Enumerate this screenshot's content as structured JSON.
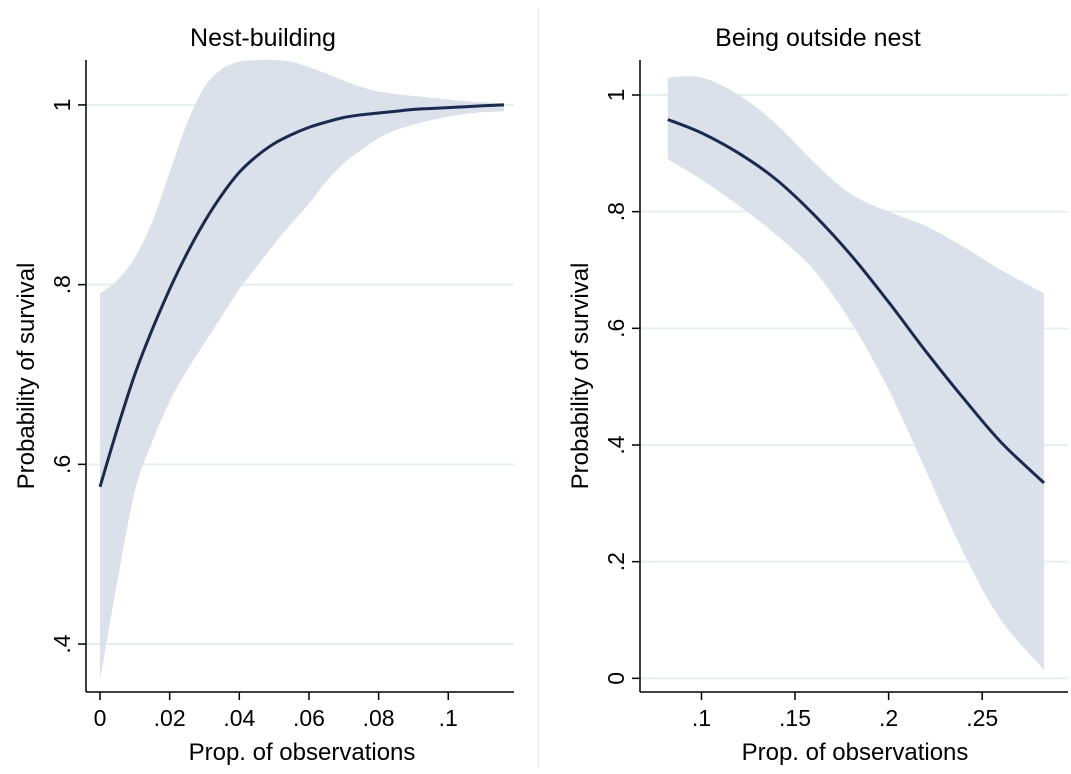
{
  "chart_data": [
    {
      "type": "line",
      "title": "Nest-building",
      "xlabel": "Prop. of observations",
      "ylabel": "Probability of survival",
      "xlim": [
        0,
        0.116
      ],
      "ylim": [
        0.36,
        1.05
      ],
      "x_ticks": [
        {
          "value": 0,
          "label": "0"
        },
        {
          "value": 0.02,
          "label": ".02"
        },
        {
          "value": 0.04,
          "label": ".04"
        },
        {
          "value": 0.06,
          "label": ".06"
        },
        {
          "value": 0.08,
          "label": ".08"
        },
        {
          "value": 0.1,
          "label": ".1"
        }
      ],
      "y_ticks": [
        {
          "value": 0.4,
          "label": ".4"
        },
        {
          "value": 0.6,
          "label": ".6"
        },
        {
          "value": 0.8,
          "label": ".8"
        },
        {
          "value": 1,
          "label": "1"
        }
      ],
      "grid": true,
      "series": [
        {
          "x": [
            0,
            0.005,
            0.01,
            0.015,
            0.02,
            0.025,
            0.03,
            0.035,
            0.04,
            0.045,
            0.05,
            0.055,
            0.06,
            0.065,
            0.07,
            0.075,
            0.08,
            0.085,
            0.09,
            0.095,
            0.1,
            0.105,
            0.11,
            0.116
          ],
          "y": [
            0.575,
            0.64,
            0.7,
            0.75,
            0.795,
            0.835,
            0.87,
            0.9,
            0.925,
            0.943,
            0.957,
            0.967,
            0.975,
            0.981,
            0.986,
            0.989,
            0.991,
            0.993,
            0.995,
            0.996,
            0.997,
            0.998,
            0.999,
            1.0
          ],
          "ci_lower": [
            0.36,
            0.47,
            0.57,
            0.625,
            0.67,
            0.705,
            0.735,
            0.765,
            0.795,
            0.82,
            0.845,
            0.868,
            0.89,
            0.915,
            0.935,
            0.95,
            0.963,
            0.972,
            0.978,
            0.983,
            0.987,
            0.99,
            0.992,
            0.993
          ],
          "ci_upper": [
            0.79,
            0.805,
            0.83,
            0.87,
            0.925,
            0.98,
            1.02,
            1.04,
            1.048,
            1.05,
            1.05,
            1.048,
            1.042,
            1.035,
            1.027,
            1.02,
            1.015,
            1.012,
            1.01,
            1.008,
            1.006,
            1.004,
            1.003,
            1.002
          ]
        }
      ]
    },
    {
      "type": "line",
      "title": "Being outside nest",
      "xlabel": "Prop. of observations",
      "ylabel": "Probability of survival",
      "xlim": [
        0.0725,
        0.2905
      ],
      "ylim": [
        -0.02,
        1.06
      ],
      "x_ticks": [
        {
          "value": 0.1,
          "label": ".1"
        },
        {
          "value": 0.15,
          "label": ".15"
        },
        {
          "value": 0.2,
          "label": ".2"
        },
        {
          "value": 0.25,
          "label": ".25"
        }
      ],
      "y_ticks": [
        {
          "value": 0,
          "label": "0"
        },
        {
          "value": 0.2,
          "label": ".2"
        },
        {
          "value": 0.4,
          "label": ".4"
        },
        {
          "value": 0.6,
          "label": ".6"
        },
        {
          "value": 0.8,
          "label": ".8"
        },
        {
          "value": 1,
          "label": "1"
        }
      ],
      "grid": true,
      "series": [
        {
          "x": [
            0.082,
            0.1,
            0.12,
            0.14,
            0.16,
            0.18,
            0.2,
            0.22,
            0.24,
            0.26,
            0.283
          ],
          "y": [
            0.958,
            0.935,
            0.9,
            0.855,
            0.795,
            0.725,
            0.645,
            0.56,
            0.48,
            0.405,
            0.335
          ],
          "ci_lower": [
            0.89,
            0.855,
            0.81,
            0.76,
            0.7,
            0.61,
            0.495,
            0.355,
            0.215,
            0.1,
            0.015
          ],
          "ci_upper": [
            1.03,
            1.03,
            1.0,
            0.95,
            0.885,
            0.83,
            0.8,
            0.775,
            0.74,
            0.7,
            0.66
          ]
        }
      ]
    }
  ],
  "colors": {
    "line": "#1a2a4f",
    "band": "#dbe1ea",
    "grid": "#e4efef",
    "axis": "#000000"
  }
}
